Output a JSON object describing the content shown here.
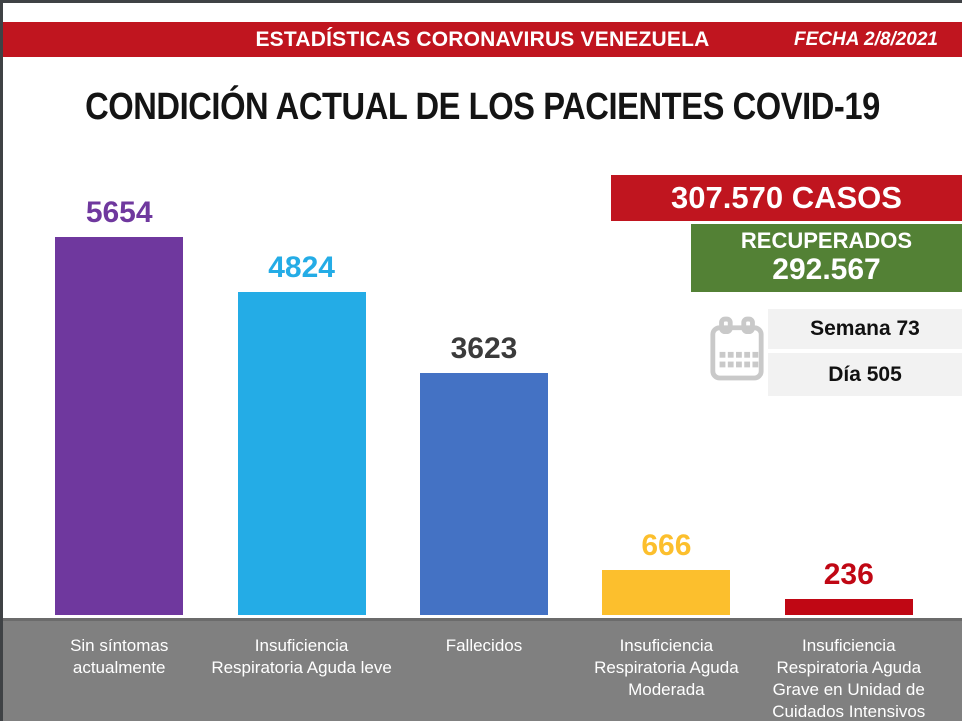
{
  "frame": {
    "border_color": "#3F4245"
  },
  "header": {
    "bg": "#C0151F",
    "title": "ESTADÍSTICAS CORONAVIRUS VENEZUELA",
    "date_label": "FECHA 2/8/2021",
    "text_color": "#FFFFFF"
  },
  "page_title": "CONDICIÓN ACTUAL DE LOS PACIENTES COVID-19",
  "stats": {
    "casos": {
      "label": "307.570 CASOS",
      "bg": "#C0151F",
      "text_color": "#FFFFFF"
    },
    "recuperados": {
      "label": "RECUPERADOS",
      "value": "292.567",
      "bg": "#538135",
      "text_color": "#FFFFFF"
    },
    "semana": {
      "label": "Semana 73",
      "bg": "#F2F2F2",
      "text_color": "#111111"
    },
    "dia": {
      "label": "Día 505",
      "bg": "#F2F2F2",
      "text_color": "#111111"
    },
    "calendar_icon_color": "#C9C9C9"
  },
  "chart_data": {
    "type": "bar",
    "title": "CONDICIÓN ACTUAL DE LOS PACIENTES COVID-19",
    "categories": [
      "Sin síntomas\nactualmente",
      "Insuficiencia\nRespiratoria Aguda leve",
      "Fallecidos",
      "Insuficiencia\nRespiratoria Aguda\nModerada",
      "Insuficiencia\nRespiratoria Aguda\nGrave en Unidad de\nCuidados Intensivos"
    ],
    "values": [
      5654,
      4824,
      3623,
      666,
      236
    ],
    "bar_colors": [
      "#6F389E",
      "#24ACE6",
      "#4472C4",
      "#FCBF2D",
      "#C00714"
    ],
    "value_label_colors": [
      "#6F389E",
      "#24ACE6",
      "#3B3B3B",
      "#FCBF2D",
      "#C00714"
    ],
    "xlabel": "",
    "ylabel": "",
    "ylim": [
      0,
      5900
    ],
    "grid": false,
    "legend": false,
    "axis_area_bg": "#808080",
    "axis_line_color": "#6B6B6B",
    "category_text_color": "#FFFFFF"
  }
}
